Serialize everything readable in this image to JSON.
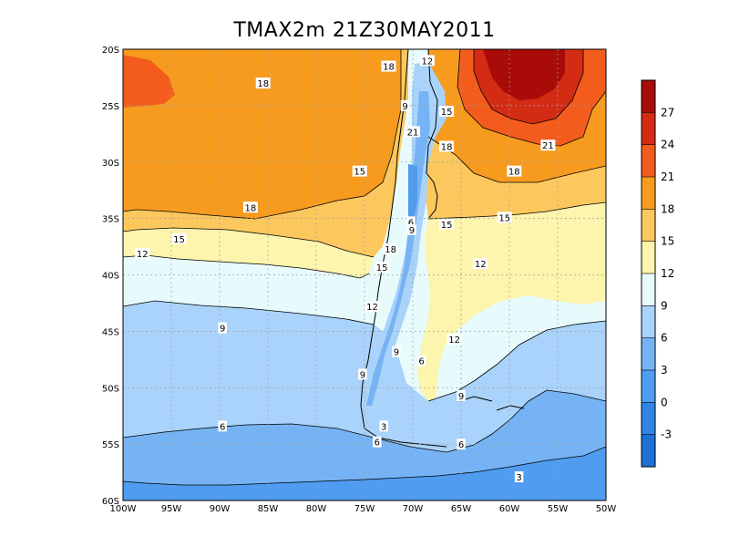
{
  "title": "TMAX2m  21Z30MAY2011",
  "colors": {
    "c_lt_m3": "#1e6fd6",
    "c_m3_0": "#2f86e6",
    "c_0_3": "#4f9cf0",
    "c_3_6": "#76b3f4",
    "c_6_9": "#a9d3fa",
    "c_9_12": "#e7fbfc",
    "c_12_15": "#fdf4ad",
    "c_15_18": "#fcc85e",
    "c_18_21": "#f79b1f",
    "c_21_24": "#f35c1c",
    "c_24_27": "#d42b14",
    "c_gt_27": "#a80b08"
  },
  "chart_data": {
    "type": "heatmap",
    "title": "TMAX2m  21Z30MAY2011",
    "x_ticks": [
      "100W",
      "95W",
      "90W",
      "85W",
      "80W",
      "75W",
      "70W",
      "65W",
      "60W",
      "55W",
      "50W"
    ],
    "y_ticks": [
      "20S",
      "25S",
      "30S",
      "35S",
      "40S",
      "45S",
      "50S",
      "55S",
      "60S"
    ],
    "x_range_deg": [
      -100,
      -50
    ],
    "y_range_deg": [
      -60,
      -20
    ],
    "grid": true,
    "colorbar": {
      "levels": [
        -3,
        0,
        3,
        6,
        9,
        12,
        15,
        18,
        21,
        24,
        27
      ],
      "labels": [
        "-3",
        "0",
        "3",
        "6",
        "9",
        "12",
        "15",
        "18",
        "21",
        "24",
        "27"
      ]
    },
    "contour_labels": [
      {
        "value": "18",
        "lon": -85.5,
        "lat": -23.0
      },
      {
        "value": "18",
        "lon": -72.5,
        "lat": -21.5
      },
      {
        "value": "12",
        "lon": -68.5,
        "lat": -21.0
      },
      {
        "value": "9",
        "lon": -70.8,
        "lat": -25.0
      },
      {
        "value": "15",
        "lon": -66.5,
        "lat": -25.5
      },
      {
        "value": "21",
        "lon": -70.0,
        "lat": -27.3
      },
      {
        "value": "18",
        "lon": -66.5,
        "lat": -28.6
      },
      {
        "value": "21",
        "lon": -56.0,
        "lat": -28.5
      },
      {
        "value": "18",
        "lon": -59.5,
        "lat": -30.8
      },
      {
        "value": "15",
        "lon": -75.5,
        "lat": -30.8
      },
      {
        "value": "18",
        "lon": -86.8,
        "lat": -34.0
      },
      {
        "value": "15",
        "lon": -66.5,
        "lat": -35.5
      },
      {
        "value": "15",
        "lon": -60.5,
        "lat": -34.9
      },
      {
        "value": "6",
        "lon": -70.2,
        "lat": -35.3
      },
      {
        "value": "9",
        "lon": -70.1,
        "lat": -36.0
      },
      {
        "value": "15",
        "lon": -94.2,
        "lat": -36.8
      },
      {
        "value": "18",
        "lon": -72.3,
        "lat": -37.7
      },
      {
        "value": "12",
        "lon": -98.0,
        "lat": -38.1
      },
      {
        "value": "12",
        "lon": -63.0,
        "lat": -39.0
      },
      {
        "value": "15",
        "lon": -73.2,
        "lat": -39.3
      },
      {
        "value": "12",
        "lon": -74.2,
        "lat": -42.8
      },
      {
        "value": "9",
        "lon": -89.7,
        "lat": -44.7
      },
      {
        "value": "12",
        "lon": -65.7,
        "lat": -45.7
      },
      {
        "value": "9",
        "lon": -71.7,
        "lat": -46.8
      },
      {
        "value": "6",
        "lon": -69.1,
        "lat": -47.6
      },
      {
        "value": "9",
        "lon": -75.2,
        "lat": -48.8
      },
      {
        "value": "9",
        "lon": -65.0,
        "lat": -50.7
      },
      {
        "value": "6",
        "lon": -89.7,
        "lat": -53.4
      },
      {
        "value": "3",
        "lon": -73.0,
        "lat": -53.4
      },
      {
        "value": "6",
        "lon": -73.7,
        "lat": -54.8
      },
      {
        "value": "6",
        "lon": -65.0,
        "lat": -55.0
      },
      {
        "value": "3",
        "lon": -59.0,
        "lat": -57.9
      }
    ]
  }
}
